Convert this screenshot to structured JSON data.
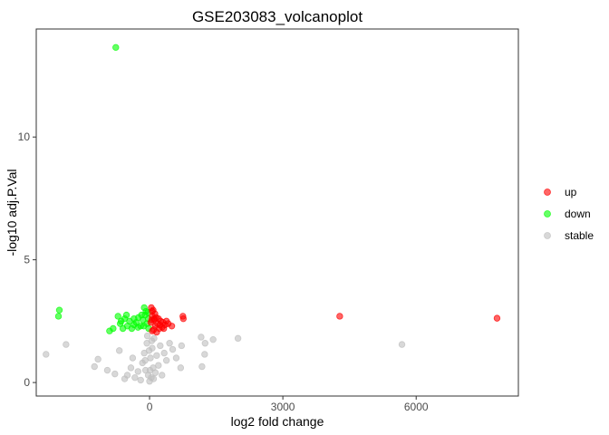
{
  "chart_data": {
    "type": "scatter",
    "title": "GSE203083_volcanoplot",
    "xlabel": "log2 fold change",
    "ylabel": "-log10 adj.P.Val",
    "xlim": [
      -2550,
      8300
    ],
    "ylim": [
      -0.55,
      14.4
    ],
    "x_ticks": [
      0,
      3000,
      6000
    ],
    "x_tick_labels": [
      "0",
      "3000",
      "6000"
    ],
    "y_ticks": [
      0,
      5,
      10
    ],
    "y_tick_labels": [
      "0",
      "5",
      "10"
    ],
    "grid": false,
    "legend_position": "right",
    "series": [
      {
        "name": "up",
        "color": "#ff0000",
        "points": [
          [
            4280,
            2.7
          ],
          [
            7820,
            2.62
          ],
          [
            40,
            3.05
          ],
          [
            80,
            2.95
          ],
          [
            120,
            2.8
          ],
          [
            60,
            2.7
          ],
          [
            150,
            2.65
          ],
          [
            200,
            2.6
          ],
          [
            100,
            2.55
          ],
          [
            250,
            2.5
          ],
          [
            30,
            2.45
          ],
          [
            180,
            2.4
          ],
          [
            300,
            2.45
          ],
          [
            350,
            2.35
          ],
          [
            420,
            2.4
          ],
          [
            500,
            2.3
          ],
          [
            130,
            2.3
          ],
          [
            220,
            2.2
          ],
          [
            280,
            2.25
          ],
          [
            90,
            2.15
          ],
          [
            60,
            2.1
          ],
          [
            160,
            2.05
          ],
          [
            50,
            2.55
          ],
          [
            750,
            2.7
          ],
          [
            760,
            2.6
          ],
          [
            380,
            2.5
          ],
          [
            60,
            2.9
          ],
          [
            110,
            2.6
          ],
          [
            230,
            2.35
          ],
          [
            320,
            2.2
          ]
        ]
      },
      {
        "name": "down",
        "color": "#00ff00",
        "points": [
          [
            -760,
            13.65
          ],
          [
            -2030,
            2.95
          ],
          [
            -2050,
            2.7
          ],
          [
            -710,
            2.7
          ],
          [
            -660,
            2.4
          ],
          [
            -820,
            2.2
          ],
          [
            -560,
            2.6
          ],
          [
            -500,
            2.3
          ],
          [
            -450,
            2.5
          ],
          [
            -400,
            2.2
          ],
          [
            -350,
            2.6
          ],
          [
            -300,
            2.45
          ],
          [
            -250,
            2.65
          ],
          [
            -200,
            2.3
          ],
          [
            -150,
            2.55
          ],
          [
            -100,
            2.75
          ],
          [
            -60,
            2.4
          ],
          [
            -30,
            2.6
          ],
          [
            -120,
            3.05
          ],
          [
            -80,
            2.9
          ],
          [
            -40,
            2.85
          ],
          [
            -180,
            2.75
          ],
          [
            -600,
            2.2
          ],
          [
            -900,
            2.1
          ],
          [
            -350,
            2.35
          ],
          [
            -20,
            2.2
          ],
          [
            -260,
            2.25
          ],
          [
            -520,
            2.75
          ],
          [
            -640,
            2.5
          ],
          [
            -130,
            2.3
          ]
        ]
      },
      {
        "name": "stable",
        "color": "#bebebe",
        "points": [
          [
            -2330,
            1.15
          ],
          [
            -1880,
            1.55
          ],
          [
            -1240,
            0.65
          ],
          [
            -1160,
            0.95
          ],
          [
            -950,
            0.5
          ],
          [
            -780,
            0.35
          ],
          [
            -680,
            1.3
          ],
          [
            -560,
            0.15
          ],
          [
            -500,
            0.3
          ],
          [
            -420,
            0.6
          ],
          [
            -380,
            1.0
          ],
          [
            -330,
            0.2
          ],
          [
            -260,
            0.45
          ],
          [
            -200,
            0.1
          ],
          [
            -160,
            0.8
          ],
          [
            -120,
            1.2
          ],
          [
            -90,
            0.5
          ],
          [
            -60,
            1.6
          ],
          [
            -30,
            0.3
          ],
          [
            0,
            0.05
          ],
          [
            20,
            1.0
          ],
          [
            40,
            0.2
          ],
          [
            60,
            1.4
          ],
          [
            80,
            0.6
          ],
          [
            100,
            1.8
          ],
          [
            130,
            0.4
          ],
          [
            160,
            1.1
          ],
          [
            200,
            0.7
          ],
          [
            240,
            1.5
          ],
          [
            280,
            0.3
          ],
          [
            330,
            1.2
          ],
          [
            380,
            0.9
          ],
          [
            450,
            1.6
          ],
          [
            520,
            1.35
          ],
          [
            600,
            1.0
          ],
          [
            720,
            1.5
          ],
          [
            700,
            0.6
          ],
          [
            1160,
            1.85
          ],
          [
            1180,
            0.65
          ],
          [
            1240,
            1.15
          ],
          [
            1250,
            1.6
          ],
          [
            1430,
            1.75
          ],
          [
            1990,
            1.8
          ],
          [
            5680,
            1.55
          ],
          [
            -50,
            1.9
          ],
          [
            50,
            1.7
          ],
          [
            10,
            0.5
          ],
          [
            -10,
            1.3
          ],
          [
            90,
            0.15
          ],
          [
            -100,
            0.9
          ]
        ]
      }
    ]
  }
}
